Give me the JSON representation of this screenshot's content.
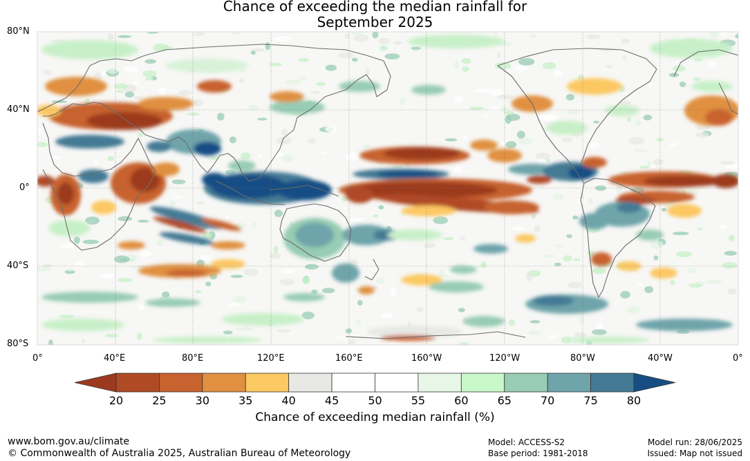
{
  "title": {
    "line1": "Chance of exceeding the median rainfall for",
    "line2": "September 2025"
  },
  "lat_labels": [
    "80°N",
    "40°N",
    "0°",
    "40°S",
    "80°S"
  ],
  "lon_labels": [
    "0°",
    "40°E",
    "80°E",
    "120°E",
    "160°E",
    "160°W",
    "120°W",
    "80°W",
    "40°W",
    "0°"
  ],
  "colorbar": {
    "title": "Chance of exceeding median rainfall (%)",
    "ticks": [
      "20",
      "25",
      "30",
      "35",
      "40",
      "45",
      "50",
      "55",
      "60",
      "65",
      "70",
      "75",
      "80"
    ],
    "colors": [
      "#9c3a1f",
      "#b04a25",
      "#c8622e",
      "#e09040",
      "#fcc862",
      "#e8e8e4",
      "#ffffff",
      "#ffffff",
      "#e8f6e8",
      "#c8f8c8",
      "#98ccb4",
      "#6ea4aa",
      "#447a94",
      "#164e84"
    ]
  },
  "footer": {
    "website": "www.bom.gov.au/climate",
    "copyright": "© Commonwealth of Australia 2025, Australian Bureau of Meteorology",
    "model": "Model: ACCESS-S2",
    "base_period": "Base period: 1981-2018",
    "model_run": "Model run: 28/06/2025",
    "issued": "Issued: Map not issued"
  }
}
